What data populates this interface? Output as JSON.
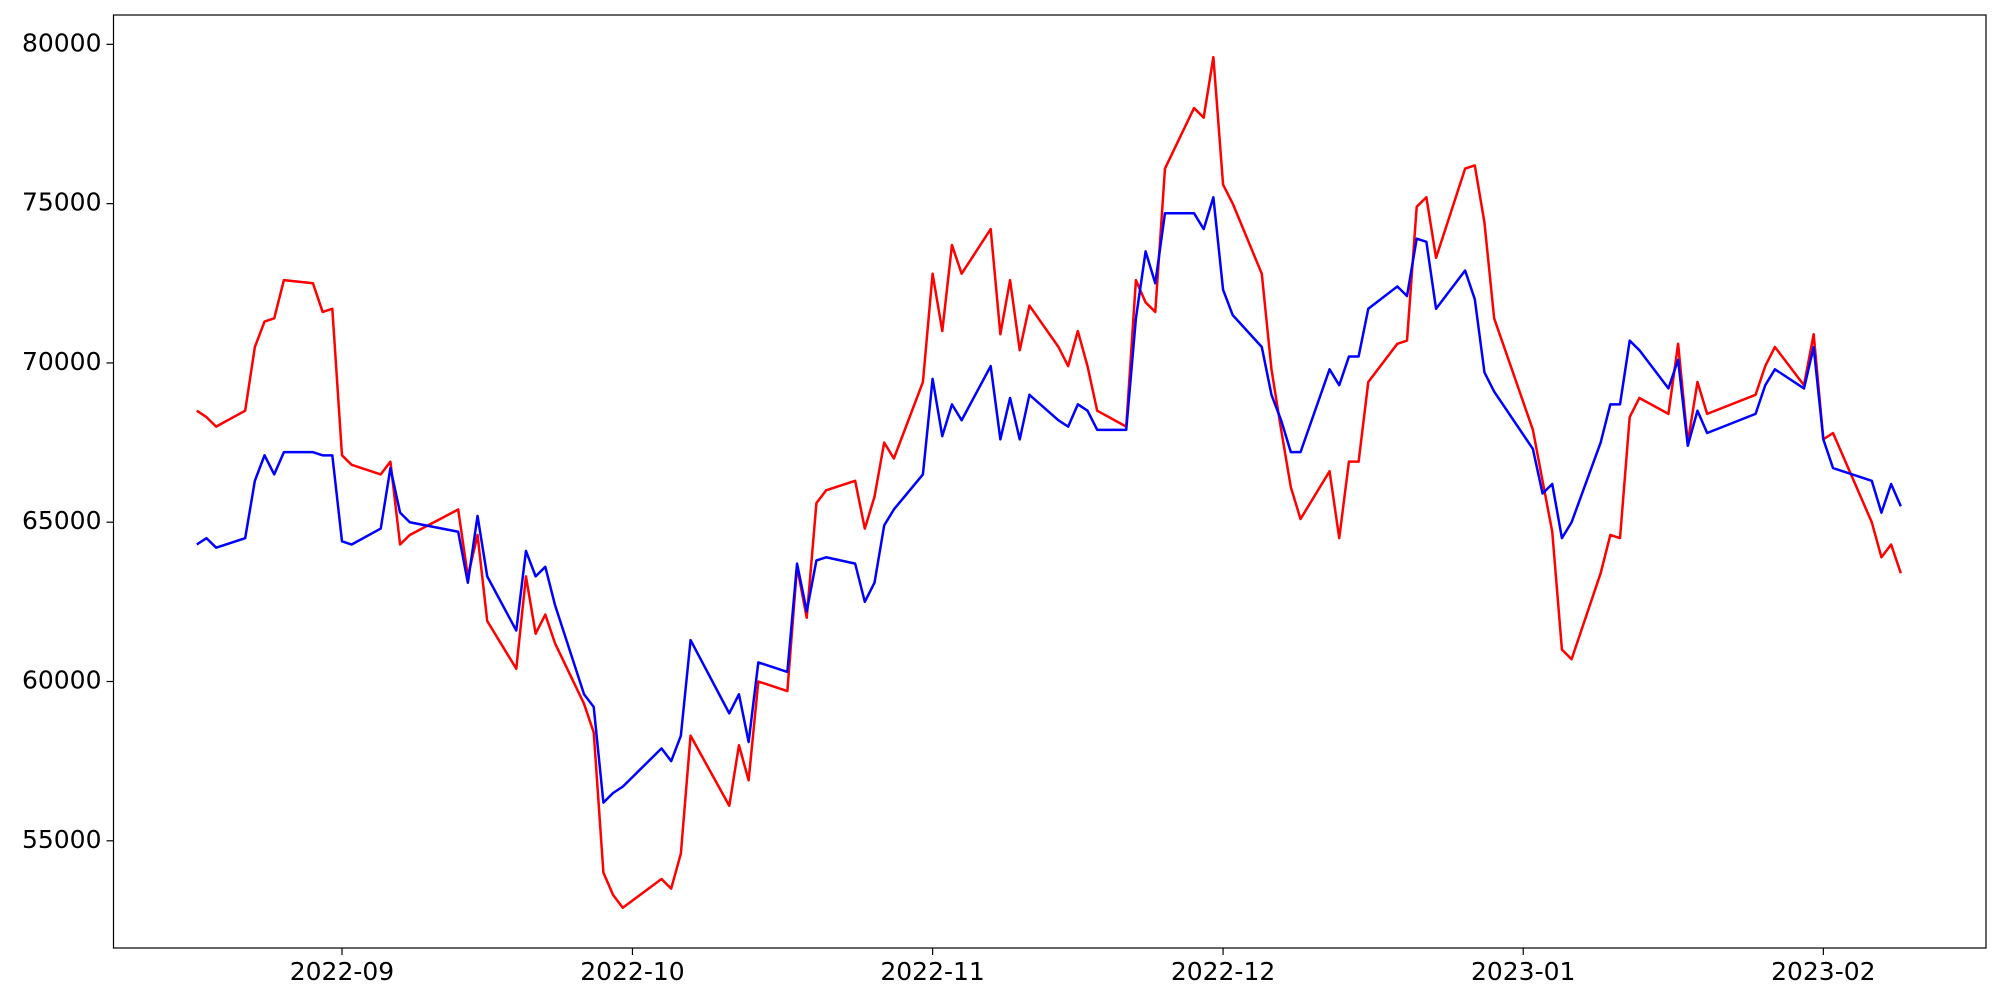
{
  "chart_data": {
    "type": "line",
    "x": [
      -15,
      -14,
      -13,
      -10,
      -9,
      -8,
      -7,
      -6,
      -3,
      -2,
      -1,
      0,
      1,
      4,
      5,
      6,
      7,
      12,
      13,
      14,
      15,
      18,
      19,
      20,
      21,
      22,
      25,
      26,
      27,
      28,
      29,
      33,
      34,
      35,
      36,
      40,
      41,
      42,
      43,
      46,
      47,
      48,
      49,
      50,
      53,
      54,
      55,
      56,
      57,
      60,
      61,
      62,
      63,
      64,
      67,
      68,
      69,
      70,
      71,
      74,
      75,
      76,
      77,
      78,
      81,
      82,
      83,
      84,
      85,
      88,
      89,
      90,
      91,
      92,
      95,
      96,
      97,
      98,
      99,
      102,
      103,
      104,
      105,
      106,
      109,
      110,
      111,
      112,
      113,
      116,
      117,
      118,
      119,
      123,
      124,
      125,
      126,
      127,
      130,
      131,
      132,
      133,
      134,
      137,
      138,
      139,
      140,
      141,
      146,
      147,
      148,
      151,
      152,
      153,
      154,
      158,
      159,
      160,
      161
    ],
    "series": [
      {
        "color": "#ff0000",
        "values": [
          68500,
          68300,
          68000,
          68500,
          70500,
          71300,
          71400,
          72600,
          72500,
          71600,
          71700,
          67100,
          66800,
          66500,
          66900,
          64300,
          64600,
          65400,
          63300,
          64600,
          61900,
          60400,
          63300,
          61500,
          62100,
          61200,
          59300,
          58400,
          54000,
          53300,
          52900,
          53800,
          53500,
          54600,
          58300,
          56100,
          58000,
          56900,
          60000,
          59700,
          63600,
          62000,
          65600,
          66000,
          66300,
          64800,
          65800,
          67500,
          67000,
          69400,
          72800,
          71000,
          73700,
          72800,
          74200,
          70900,
          72600,
          70400,
          71800,
          70500,
          69900,
          71000,
          69900,
          68500,
          68000,
          72600,
          71900,
          71600,
          76100,
          78000,
          77700,
          79600,
          75600,
          75000,
          72800,
          69800,
          67900,
          66100,
          65100,
          66600,
          64500,
          66900,
          66900,
          69400,
          70600,
          70700,
          74900,
          75200,
          73300,
          76100,
          76200,
          74400,
          71400,
          67900,
          66300,
          64700,
          61000,
          60700,
          63400,
          64600,
          64500,
          68300,
          68900,
          68400,
          70600,
          67500,
          69400,
          68400,
          69000,
          69900,
          70500,
          69300,
          70900,
          67600,
          67800,
          65000,
          63900,
          64300,
          63400
        ]
      },
      {
        "color": "#0000ff",
        "values": [
          64300,
          64500,
          64200,
          64500,
          66300,
          67100,
          66500,
          67200,
          67200,
          67100,
          67100,
          64400,
          64300,
          64800,
          66700,
          65300,
          65000,
          64700,
          63100,
          65200,
          63300,
          61600,
          64100,
          63300,
          63600,
          62400,
          59600,
          59200,
          56200,
          56500,
          56700,
          57900,
          57500,
          58300,
          61300,
          59000,
          59600,
          58100,
          60600,
          60300,
          63700,
          62200,
          63800,
          63900,
          63700,
          62500,
          63100,
          64900,
          65400,
          66500,
          69500,
          67700,
          68700,
          68200,
          69900,
          67600,
          68900,
          67600,
          69000,
          68200,
          68000,
          68700,
          68500,
          67900,
          67900,
          71400,
          73500,
          72500,
          74700,
          74700,
          74200,
          75200,
          72300,
          71500,
          70500,
          69000,
          68200,
          67200,
          67200,
          69800,
          69300,
          70200,
          70200,
          71700,
          72400,
          72100,
          73900,
          73800,
          71700,
          72900,
          72000,
          69700,
          69100,
          67300,
          65900,
          66200,
          64500,
          65000,
          67500,
          68700,
          68700,
          70700,
          70400,
          69200,
          70100,
          67400,
          68500,
          67800,
          68400,
          69300,
          69800,
          69200,
          70500,
          67600,
          66700,
          66300,
          65300,
          66200,
          65500
        ]
      }
    ],
    "xlim": [
      -23.6,
      169.8
    ],
    "xticks": [
      {
        "value": 0,
        "label": "2022-09"
      },
      {
        "value": 30,
        "label": "2022-10"
      },
      {
        "value": 61,
        "label": "2022-11"
      },
      {
        "value": 91,
        "label": "2022-12"
      },
      {
        "value": 122,
        "label": "2023-01"
      },
      {
        "value": 153,
        "label": "2023-02"
      }
    ],
    "ylim": [
      51635,
      80921
    ],
    "yticks": [
      55000,
      60000,
      65000,
      70000,
      75000,
      80000
    ]
  }
}
